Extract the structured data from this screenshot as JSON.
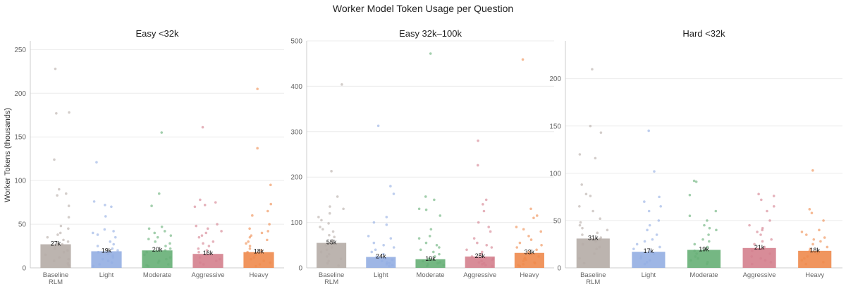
{
  "chart_data": {
    "type": "bar",
    "title": "Worker Model Token Usage per Question",
    "ylabel": "Worker Tokens (thousands)",
    "categories": [
      "Baseline\nRLM",
      "Light",
      "Moderate",
      "Aggressive",
      "Heavy"
    ],
    "colors": [
      "#b5aca6",
      "#93aee2",
      "#66af76",
      "#d47f8d",
      "#ee8a4d"
    ],
    "grid": true,
    "panels": [
      {
        "title": "Easy <32k",
        "ylim": [
          0,
          260
        ],
        "yticks": [
          0,
          50,
          100,
          150,
          200,
          250
        ],
        "values": [
          27,
          19,
          20,
          16,
          18
        ],
        "value_labels": [
          "27k",
          "19k",
          "20k",
          "16k",
          "18k"
        ],
        "points": [
          [
            228,
            178,
            177,
            124,
            90,
            85,
            83,
            71,
            58,
            48,
            45,
            40,
            38,
            35,
            32,
            30,
            28,
            27,
            25,
            22,
            20,
            18,
            15,
            12,
            10,
            8,
            5,
            3
          ],
          [
            121,
            76,
            72,
            70,
            59,
            44,
            42,
            40,
            38,
            35,
            30,
            27,
            25,
            22,
            20,
            18,
            16,
            14,
            12,
            10,
            8,
            6,
            4,
            2
          ],
          [
            155,
            85,
            71,
            47,
            45,
            42,
            40,
            37,
            35,
            33,
            30,
            28,
            25,
            22,
            20,
            18,
            15,
            12,
            10,
            8,
            6,
            4,
            3,
            2
          ],
          [
            161,
            78,
            75,
            72,
            70,
            50,
            48,
            45,
            42,
            40,
            37,
            35,
            30,
            28,
            25,
            22,
            20,
            18,
            15,
            12,
            10,
            8,
            6,
            4
          ],
          [
            205,
            137,
            95,
            73,
            65,
            60,
            50,
            45,
            42,
            40,
            37,
            35,
            32,
            30,
            28,
            25,
            22,
            20,
            18,
            15,
            12,
            10,
            8,
            6,
            4,
            2
          ]
        ]
      },
      {
        "title": "Easy 32k–100k",
        "ylim": [
          0,
          500
        ],
        "yticks": [
          0,
          100,
          200,
          300,
          400,
          500
        ],
        "values": [
          55,
          24,
          19,
          25,
          33
        ],
        "value_labels": [
          "55k",
          "24k",
          "19k",
          "25k",
          "33k"
        ],
        "points": [
          [
            404,
            213,
            157,
            135,
            130,
            120,
            112,
            105,
            98,
            90,
            85,
            80,
            72,
            68,
            60,
            55,
            50,
            45,
            40,
            35,
            30,
            25,
            20,
            15,
            10,
            5
          ],
          [
            313,
            180,
            163,
            112,
            100,
            95,
            70,
            65,
            55,
            50,
            45,
            40,
            35,
            30,
            25,
            22,
            20,
            18,
            15,
            12,
            10,
            8,
            6,
            4
          ],
          [
            472,
            157,
            150,
            130,
            128,
            115,
            85,
            70,
            65,
            55,
            50,
            45,
            40,
            35,
            30,
            25,
            20,
            18,
            15,
            12,
            10,
            8,
            6,
            4
          ],
          [
            280,
            226,
            150,
            140,
            125,
            100,
            90,
            80,
            65,
            55,
            50,
            45,
            40,
            35,
            30,
            25,
            22,
            20,
            18,
            15,
            12,
            10,
            8,
            6,
            4
          ],
          [
            459,
            130,
            115,
            110,
            90,
            85,
            80,
            70,
            62,
            55,
            50,
            45,
            40,
            35,
            30,
            25,
            22,
            20,
            18,
            15,
            12,
            10,
            8,
            6,
            4
          ]
        ]
      },
      {
        "title": "Hard <32k",
        "ylim": [
          0,
          240
        ],
        "yticks": [
          0,
          50,
          100,
          150,
          200
        ],
        "values": [
          31,
          17,
          19,
          21,
          18
        ],
        "value_labels": [
          "31k",
          "17k",
          "19k",
          "21k",
          "18k"
        ],
        "points": [
          [
            210,
            150,
            143,
            120,
            116,
            88,
            78,
            76,
            65,
            60,
            52,
            48,
            45,
            42,
            40,
            37,
            35,
            32,
            30,
            28,
            25,
            22,
            20,
            15,
            10,
            5
          ],
          [
            145,
            102,
            75,
            70,
            65,
            60,
            50,
            45,
            40,
            35,
            30,
            28,
            25,
            22,
            20,
            18,
            15,
            12,
            10,
            8,
            6,
            4
          ],
          [
            92,
            91,
            77,
            60,
            55,
            50,
            45,
            42,
            40,
            35,
            30,
            28,
            25,
            22,
            20,
            18,
            15,
            12,
            10,
            8,
            6,
            4
          ],
          [
            78,
            76,
            72,
            65,
            60,
            50,
            45,
            42,
            40,
            38,
            35,
            30,
            28,
            25,
            22,
            20,
            18,
            15,
            12,
            10,
            8,
            6,
            4
          ],
          [
            103,
            62,
            58,
            50,
            40,
            38,
            35,
            32,
            30,
            28,
            25,
            22,
            20,
            18,
            15,
            12,
            10,
            8,
            6,
            4
          ]
        ]
      }
    ]
  }
}
